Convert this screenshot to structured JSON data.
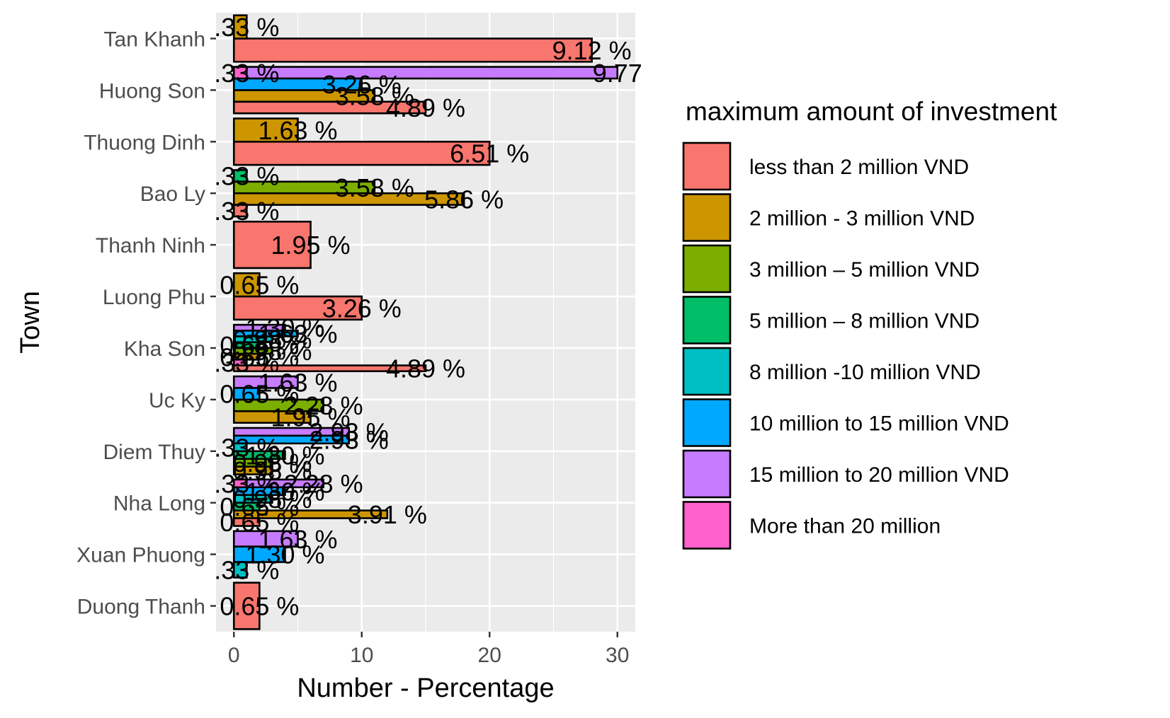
{
  "chart_data": {
    "type": "bar",
    "orientation": "horizontal",
    "xlabel": "Number - Percentage",
    "ylabel": "Town",
    "xlim": [
      -1.4,
      31.4
    ],
    "x_ticks": [
      0,
      10,
      20,
      30
    ],
    "grid": true,
    "legend_placement": "right",
    "legend_title": "maximum amount of investment",
    "categories": [
      "Tan Khanh",
      "Huong Son",
      "Thuong Dinh",
      "Bao Ly",
      "Thanh Ninh",
      "Luong Phu",
      "Kha Son",
      "Uc Ky",
      "Diem Thuy",
      "Nha Long",
      "Xuan Phuong",
      "Duong Thanh"
    ],
    "series": [
      {
        "name": "less than 2 million VND",
        "color": "#F8766D"
      },
      {
        "name": "2 million - 3 million VND",
        "color": "#CD9600"
      },
      {
        "name": "3 million – 5 million VND",
        "color": "#7CAE00"
      },
      {
        "name": "5 million – 8 million VND",
        "color": "#00BE67"
      },
      {
        "name": "8 million -10 million VND",
        "color": "#00BFC4"
      },
      {
        "name": "10 million to 15 million VND",
        "color": "#00A9FF"
      },
      {
        "name": "15 million to 20 million VND",
        "color": "#C77CFF"
      },
      {
        "name": "More than 20 million",
        "color": "#FF61CC"
      }
    ],
    "bars": [
      {
        "category": "Tan Khanh",
        "series": 1,
        "value": 1,
        "label": ".33 %",
        "row": 0,
        "n_rows": 2
      },
      {
        "category": "Tan Khanh",
        "series": 0,
        "value": 28,
        "label": "9.12 %",
        "row": 1,
        "n_rows": 2
      },
      {
        "category": "Huong Son",
        "series": 6,
        "value": 30,
        "label": "9.77",
        "row": 0,
        "n_rows": 4
      },
      {
        "category": "Huong Son",
        "series": 7,
        "value": 1,
        "label": ".33 %",
        "row": 0,
        "n_rows": 4
      },
      {
        "category": "Huong Son",
        "series": 5,
        "value": 10,
        "label": "3.26 %",
        "row": 1,
        "n_rows": 4
      },
      {
        "category": "Huong Son",
        "series": 1,
        "value": 11,
        "label": "3.58 %",
        "row": 2,
        "n_rows": 4
      },
      {
        "category": "Huong Son",
        "series": 0,
        "value": 15,
        "label": "4.89 %",
        "row": 3,
        "n_rows": 4
      },
      {
        "category": "Thuong Dinh",
        "series": 1,
        "value": 5,
        "label": "1.63 %",
        "row": 0,
        "n_rows": 2
      },
      {
        "category": "Thuong Dinh",
        "series": 0,
        "value": 20,
        "label": "6.51 %",
        "row": 1,
        "n_rows": 2
      },
      {
        "category": "Bao Ly",
        "series": 3,
        "value": 1,
        "label": ".33 %",
        "row": 0,
        "n_rows": 4
      },
      {
        "category": "Bao Ly",
        "series": 2,
        "value": 11,
        "label": "3.58 %",
        "row": 1,
        "n_rows": 4
      },
      {
        "category": "Bao Ly",
        "series": 1,
        "value": 18,
        "label": "5.86 %",
        "row": 2,
        "n_rows": 4
      },
      {
        "category": "Bao Ly",
        "series": 0,
        "value": 1,
        "label": ".33 %",
        "row": 3,
        "n_rows": 4
      },
      {
        "category": "Thanh Ninh",
        "series": 0,
        "value": 6,
        "label": "1.95 %",
        "row": 0,
        "n_rows": 1
      },
      {
        "category": "Luong Phu",
        "series": 1,
        "value": 2,
        "label": "0.65 %",
        "row": 0,
        "n_rows": 2
      },
      {
        "category": "Luong Phu",
        "series": 0,
        "value": 10,
        "label": "3.26 %",
        "row": 1,
        "n_rows": 2
      },
      {
        "category": "Kha Son",
        "series": 6,
        "value": 4,
        "label": "1.30 %",
        "row": 0,
        "n_rows": 8
      },
      {
        "category": "Kha Son",
        "series": 5,
        "value": 5,
        "label": "1.63 %",
        "row": 1,
        "n_rows": 8
      },
      {
        "category": "Kha Son",
        "series": 4,
        "value": 3,
        "label": "0.98 %",
        "row": 2,
        "n_rows": 8
      },
      {
        "category": "Kha Son",
        "series": 3,
        "value": 2,
        "label": "0.65 %",
        "row": 3,
        "n_rows": 8
      },
      {
        "category": "Kha Son",
        "series": 2,
        "value": 3,
        "label": "0.98 %",
        "row": 4,
        "n_rows": 8
      },
      {
        "category": "Kha Son",
        "series": 1,
        "value": 2,
        "label": "0.65 %",
        "row": 5,
        "n_rows": 8
      },
      {
        "category": "Kha Son",
        "series": 7,
        "value": 1,
        "label": ".33 %",
        "row": 6,
        "n_rows": 8
      },
      {
        "category": "Kha Son",
        "series": 0,
        "value": 15,
        "label": "4.89 %",
        "row": 7,
        "n_rows": 8
      },
      {
        "category": "Uc Ky",
        "series": 6,
        "value": 5,
        "label": "1.63 %",
        "row": 0,
        "n_rows": 4
      },
      {
        "category": "Uc Ky",
        "series": 5,
        "value": 2,
        "label": "0.65 %",
        "row": 1,
        "n_rows": 4
      },
      {
        "category": "Uc Ky",
        "series": 2,
        "value": 7,
        "label": "2.28 %",
        "row": 2,
        "n_rows": 4
      },
      {
        "category": "Uc Ky",
        "series": 1,
        "value": 6,
        "label": "1.95 %",
        "row": 3,
        "n_rows": 4
      },
      {
        "category": "Diem Thuy",
        "series": 6,
        "value": 9,
        "label": "2.93 %",
        "row": 0,
        "n_rows": 6
      },
      {
        "category": "Diem Thuy",
        "series": 5,
        "value": 9,
        "label": "2.93 %",
        "row": 1,
        "n_rows": 6
      },
      {
        "category": "Diem Thuy",
        "series": 4,
        "value": 1,
        "label": ".33 %",
        "row": 2,
        "n_rows": 6
      },
      {
        "category": "Diem Thuy",
        "series": 3,
        "value": 4,
        "label": "1.30 %",
        "row": 3,
        "n_rows": 6
      },
      {
        "category": "Diem Thuy",
        "series": 2,
        "value": 3,
        "label": "0.98 %",
        "row": 4,
        "n_rows": 6
      },
      {
        "category": "Diem Thuy",
        "series": 1,
        "value": 3,
        "label": "0.98 %",
        "row": 5,
        "n_rows": 6
      },
      {
        "category": "Nha Long",
        "series": 6,
        "value": 7,
        "label": "2.28 %",
        "row": 0,
        "n_rows": 6
      },
      {
        "category": "Nha Long",
        "series": 7,
        "value": 1,
        "label": ".33 %",
        "row": 0,
        "n_rows": 6
      },
      {
        "category": "Nha Long",
        "series": 5,
        "value": 4,
        "label": "1.30 %",
        "row": 1,
        "n_rows": 6
      },
      {
        "category": "Nha Long",
        "series": 4,
        "value": 3,
        "label": "0.98 %",
        "row": 2,
        "n_rows": 6
      },
      {
        "category": "Nha Long",
        "series": 3,
        "value": 2,
        "label": "0.65 %",
        "row": 3,
        "n_rows": 6
      },
      {
        "category": "Nha Long",
        "series": 1,
        "value": 12,
        "label": "3.91 %",
        "row": 4,
        "n_rows": 6
      },
      {
        "category": "Nha Long",
        "series": 0,
        "value": 2,
        "label": "0.65 %",
        "row": 5,
        "n_rows": 6
      },
      {
        "category": "Xuan Phuong",
        "series": 6,
        "value": 5,
        "label": "1.63 %",
        "row": 0,
        "n_rows": 3
      },
      {
        "category": "Xuan Phuong",
        "series": 5,
        "value": 4,
        "label": "1.30 %",
        "row": 1,
        "n_rows": 3
      },
      {
        "category": "Xuan Phuong",
        "series": 4,
        "value": 1,
        "label": ".33 %",
        "row": 2,
        "n_rows": 3
      },
      {
        "category": "Duong Thanh",
        "series": 0,
        "value": 2,
        "label": "0.65 %",
        "row": 0,
        "n_rows": 1
      }
    ]
  }
}
